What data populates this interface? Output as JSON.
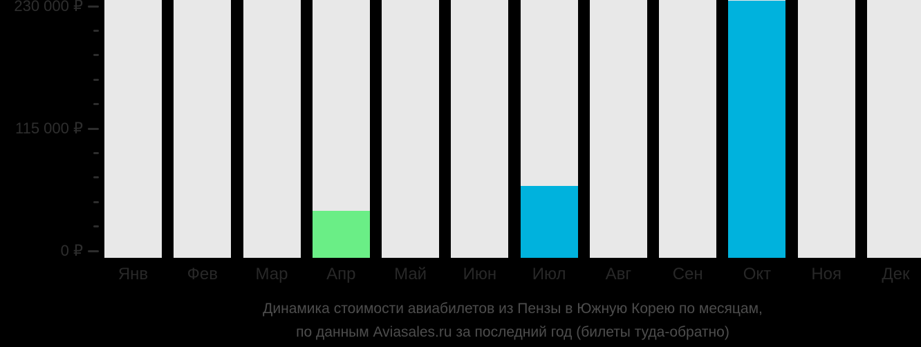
{
  "chart_data": {
    "type": "bar",
    "title": "Динамика стоимости авиабилетов из Пензы в Южную Корею по месяцам,",
    "subtitle": "по данным Aviasales.ru за последний год (билеты туда-обратно)",
    "categories": [
      "Янв",
      "Фев",
      "Мар",
      "Апр",
      "Май",
      "Июн",
      "Июл",
      "Авг",
      "Сен",
      "Окт",
      "Ноя",
      "Дек"
    ],
    "values": [
      null,
      null,
      null,
      38000,
      null,
      null,
      61000,
      null,
      null,
      235000,
      null,
      null
    ],
    "bar_colors": [
      null,
      null,
      null,
      "#6aee86",
      null,
      null,
      "#00b2dd",
      null,
      null,
      "#00b2dd",
      null,
      null
    ],
    "ylabel": "",
    "xlabel": "",
    "currency": "₽",
    "ylim": [
      0,
      230000
    ],
    "y_minor_step": 23000,
    "y_major_step": 115000,
    "y_ticks": [
      {
        "value": 230000,
        "label": "230 000 ₽"
      },
      {
        "value": 115000,
        "label": "115 000 ₽"
      },
      {
        "value": 0,
        "label": "0 ₽"
      }
    ],
    "legend": null,
    "grid": "off",
    "colors": {
      "background": "#000000",
      "column_background": "#e8e8e8",
      "bar_green": "#6aee86",
      "bar_blue": "#00b2dd",
      "axis_text": "#2e2e2e",
      "month_text": "#282828",
      "caption_text": "#4d4d4d"
    }
  }
}
